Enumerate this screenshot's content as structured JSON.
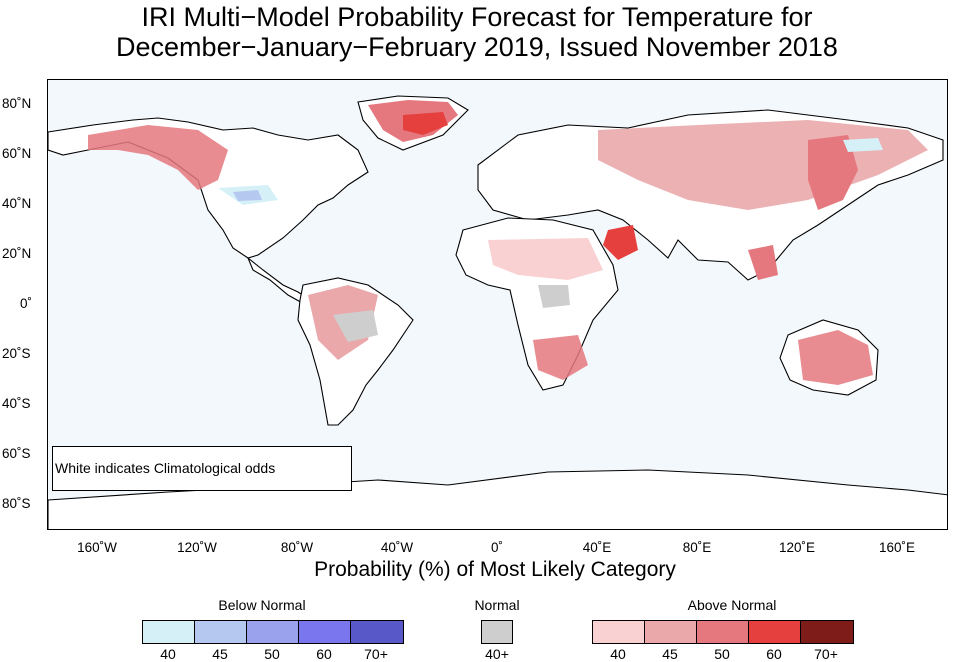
{
  "title": {
    "line1": "IRI Multi−Model Probability Forecast for Temperature for",
    "line2": "December−January−February 2019, Issued November 2018"
  },
  "map": {
    "note": "White indicates Climatological odds",
    "lat_labels": [
      "80˚N",
      "60˚N",
      "40˚N",
      "20˚N",
      "0˚",
      "20˚S",
      "40˚S",
      "60˚S",
      "80˚S"
    ],
    "lon_labels": [
      "160˚W",
      "120˚W",
      "80˚W",
      "40˚W",
      "0˚",
      "40˚E",
      "80˚E",
      "120˚E",
      "160˚E"
    ],
    "colors": {
      "ocean": "#f3f8fd",
      "land": "#ffffff",
      "coast": "#000000"
    }
  },
  "legend": {
    "title": "Probability (%) of Most Likely Category",
    "below": {
      "label": "Below Normal",
      "ticks": [
        "40",
        "45",
        "50",
        "60",
        "70+"
      ],
      "colors": [
        "#d5f1f7",
        "#b5c8f0",
        "#9aa2ee",
        "#7a76ee",
        "#5858c8"
      ]
    },
    "normal": {
      "label": "Normal",
      "ticks": [
        "40+"
      ],
      "colors": [
        "#cecece"
      ]
    },
    "above": {
      "label": "Above Normal",
      "ticks": [
        "40",
        "45",
        "50",
        "60",
        "70+"
      ],
      "colors": [
        "#f9d1d2",
        "#eaa8ab",
        "#e4787e",
        "#e53f3e",
        "#7e1c1a"
      ]
    }
  }
}
